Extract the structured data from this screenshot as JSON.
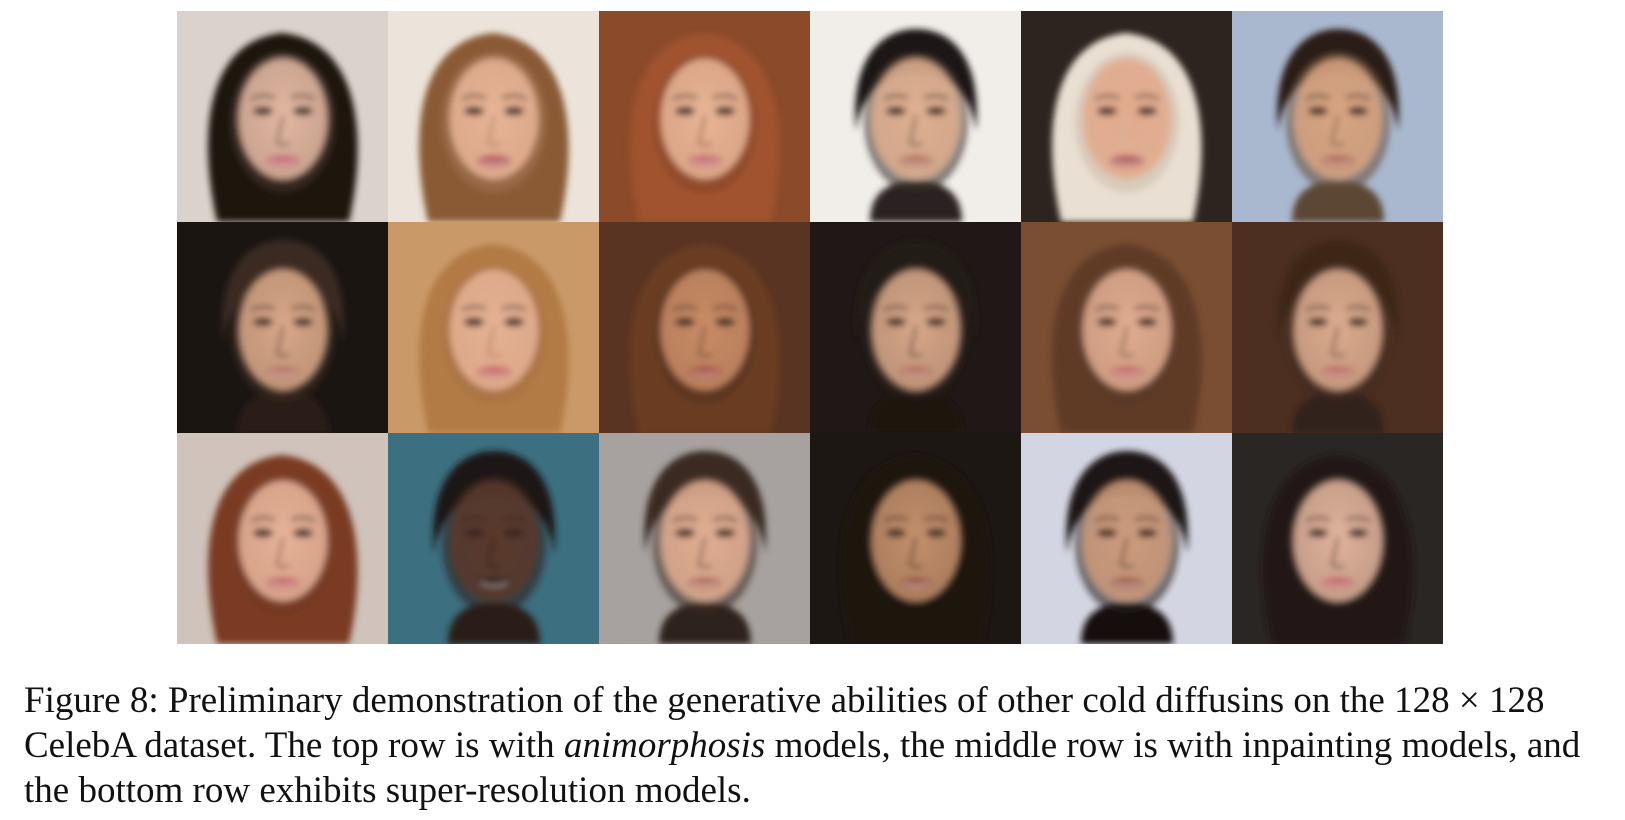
{
  "figure": {
    "rows": [
      {
        "portraits": [
          {
            "bg": "#d9d3cc",
            "hair": "#1c1410",
            "skin": "#e3b8a2",
            "lip": "#c76a78",
            "shade": "#3a2a22",
            "style": "long"
          },
          {
            "bg": "#ece4da",
            "hair": "#8a5a34",
            "skin": "#e7b496",
            "lip": "#b85d5f",
            "shade": "#9c6e4c",
            "style": "long"
          },
          {
            "bg": "#8b4a2a",
            "hair": "#a0522d",
            "skin": "#e8b597",
            "lip": "#c56f72",
            "shade": "#7e3d20",
            "style": "long"
          },
          {
            "bg": "#f1eeea",
            "hair": "#1a1512",
            "skin": "#e0b090",
            "lip": "#b57463",
            "shade": "#2b2420",
            "style": "short"
          },
          {
            "bg": "#2e241f",
            "hair": "#e9dfd2",
            "skin": "#e2a98c",
            "lip": "#b25f5f",
            "shade": "#cdbfae",
            "style": "long"
          },
          {
            "bg": "#a9b8cf",
            "hair": "#2a1f18",
            "skin": "#d8a581",
            "lip": "#b4705b",
            "shade": "#5c4634",
            "style": "short"
          }
        ]
      },
      {
        "portraits": [
          {
            "bg": "#1b1512",
            "hair": "#3a2a20",
            "skin": "#d9a888",
            "lip": "#b77466",
            "shade": "#2a1e17",
            "style": "short"
          },
          {
            "bg": "#c99a68",
            "hair": "#b27a45",
            "skin": "#e5b195",
            "lip": "#c96a6a",
            "shade": "#a06a3c",
            "style": "long"
          },
          {
            "bg": "#5a3422",
            "hair": "#6b3d24",
            "skin": "#c98c66",
            "lip": "#a9524b",
            "shade": "#4a2a1a",
            "style": "long"
          },
          {
            "bg": "#1f1816",
            "hair": "#241a15",
            "skin": "#d8a88a",
            "lip": "#b5705f",
            "shade": "#1a1310",
            "style": "short"
          },
          {
            "bg": "#7a4e32",
            "hair": "#5e3b26",
            "skin": "#e0ad90",
            "lip": "#c26f6c",
            "shade": "#4f3120",
            "style": "long"
          },
          {
            "bg": "#4c2f20",
            "hair": "#3e2618",
            "skin": "#dcac8e",
            "lip": "#bd6e66",
            "shade": "#33201a",
            "style": "short"
          }
        ]
      },
      {
        "portraits": [
          {
            "bg": "#cfc3bb",
            "hair": "#7a3a24",
            "skin": "#e6b49a",
            "lip": "#c76d6e",
            "shade": "#6a301c",
            "style": "long"
          },
          {
            "bg": "#3c6f80",
            "hair": "#1a1614",
            "skin": "#5a3a2c",
            "lip": "#3e2820",
            "shade": "#2a1d18",
            "style": "short"
          },
          {
            "bg": "#a7a29f",
            "hair": "#3b2a22",
            "skin": "#e2ae92",
            "lip": "#b5705e",
            "shade": "#2e201a",
            "style": "short"
          },
          {
            "bg": "#1d1713",
            "hair": "#1a120e",
            "skin": "#c4906c",
            "lip": "#9c5a4c",
            "shade": "#140d0a",
            "style": "long"
          },
          {
            "bg": "#d3d6e2",
            "hair": "#1a1412",
            "skin": "#cf9c7d",
            "lip": "#a46254",
            "shade": "#151010",
            "style": "short"
          },
          {
            "bg": "#2a2624",
            "hair": "#201815",
            "skin": "#e2b49c",
            "lip": "#c36a6e",
            "shade": "#161110",
            "style": "long"
          }
        ]
      }
    ]
  },
  "caption": {
    "label": "Figure 8:",
    "text_1": " Preliminary demonstration of the generative abilities of other cold diffusins on the 128",
    "times": " × ",
    "text_2": "128 CelebA dataset. The top row is with ",
    "italic": "animorphosis",
    "text_3": " models, the middle row is with inpainting models, and the bottom row exhibits super-resolution models."
  }
}
